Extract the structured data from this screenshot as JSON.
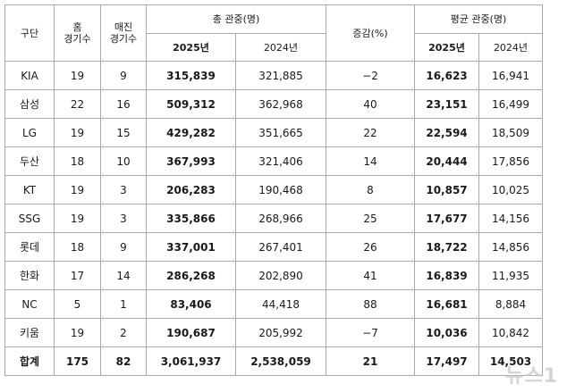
{
  "table": {
    "header": {
      "team": "구단",
      "home_games": [
        "홈",
        "경기수"
      ],
      "sellout_games": [
        "매진",
        "경기수"
      ],
      "total_attendance": "총 관중(명)",
      "change": "증감(%)",
      "avg_attendance": "평균 관중(명)",
      "year_2025": "2025년",
      "year_2024": "2024년"
    },
    "rows": [
      {
        "team": "KIA",
        "home_games": "19",
        "sellouts": "9",
        "total_2025": "315,839",
        "total_2024": "321,885",
        "change": "−2",
        "avg_2025": "16,623",
        "avg_2024": "16,941"
      },
      {
        "team": "삼성",
        "home_games": "22",
        "sellouts": "16",
        "total_2025": "509,312",
        "total_2024": "362,968",
        "change": "40",
        "avg_2025": "23,151",
        "avg_2024": "16,499"
      },
      {
        "team": "LG",
        "home_games": "19",
        "sellouts": "15",
        "total_2025": "429,282",
        "total_2024": "351,665",
        "change": "22",
        "avg_2025": "22,594",
        "avg_2024": "18,509"
      },
      {
        "team": "두산",
        "home_games": "18",
        "sellouts": "10",
        "total_2025": "367,993",
        "total_2024": "321,406",
        "change": "14",
        "avg_2025": "20,444",
        "avg_2024": "17,856"
      },
      {
        "team": "KT",
        "home_games": "19",
        "sellouts": "3",
        "total_2025": "206,283",
        "total_2024": "190,468",
        "change": "8",
        "avg_2025": "10,857",
        "avg_2024": "10,025"
      },
      {
        "team": "SSG",
        "home_games": "19",
        "sellouts": "3",
        "total_2025": "335,866",
        "total_2024": "268,966",
        "change": "25",
        "avg_2025": "17,677",
        "avg_2024": "14,156"
      },
      {
        "team": "롯데",
        "home_games": "18",
        "sellouts": "9",
        "total_2025": "337,001",
        "total_2024": "267,401",
        "change": "26",
        "avg_2025": "18,722",
        "avg_2024": "14,856"
      },
      {
        "team": "한화",
        "home_games": "17",
        "sellouts": "14",
        "total_2025": "286,268",
        "total_2024": "202,890",
        "change": "41",
        "avg_2025": "16,839",
        "avg_2024": "11,935"
      },
      {
        "team": "NC",
        "home_games": "5",
        "sellouts": "1",
        "total_2025": "83,406",
        "total_2024": "44,418",
        "change": "88",
        "avg_2025": "16,681",
        "avg_2024": "8,884"
      },
      {
        "team": "키움",
        "home_games": "19",
        "sellouts": "2",
        "total_2025": "190,687",
        "total_2024": "205,992",
        "change": "−7",
        "avg_2025": "10,036",
        "avg_2024": "10,842"
      }
    ],
    "total": {
      "team": "합계",
      "home_games": "175",
      "sellouts": "82",
      "total_2025": "3,061,937",
      "total_2024": "2,538,059",
      "change": "21",
      "avg_2025": "17,497",
      "avg_2024": "14,503"
    }
  },
  "watermark": "뉴스1"
}
